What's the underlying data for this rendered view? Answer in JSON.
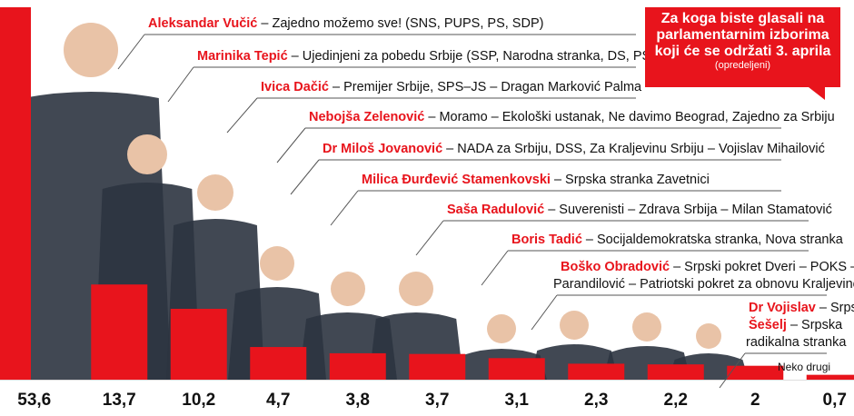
{
  "question": {
    "text": "Za koga biste glasali na parlamentarnim izborima koji će se održati 3. aprila",
    "note": "(opredeljeni)"
  },
  "colors": {
    "bar": "#e8141c",
    "name": "#e8141c",
    "text": "#111111",
    "leader": "#555555",
    "photo_skin": "#e9c3a7",
    "photo_suit": "#2c3440"
  },
  "chart_data": {
    "type": "bar",
    "ylim": [
      0,
      53.6
    ],
    "categories": [
      "Aleksandar Vučić",
      "Marinika Tepić",
      "Ivica Dačić",
      "Nebojša Zelenović",
      "Dr Miloš Jovanović",
      "Milica Đurđević Stamenkovski",
      "Saša Radulović",
      "Boris Tadić",
      "Boško Obradović",
      "Dr Vojislav Šešelj",
      "Neko drugi"
    ],
    "values": [
      53.6,
      13.7,
      10.2,
      4.7,
      3.8,
      3.7,
      3.1,
      2.3,
      2.2,
      2,
      0.7
    ],
    "value_labels": [
      "53,6",
      "13,7",
      "10,2",
      "4,7",
      "3,8",
      "3,7",
      "3,1",
      "2,3",
      "2,2",
      "2",
      "0,7"
    ],
    "bars": [
      {
        "name": "Aleksandar Vučić",
        "desc": " – Zajedno možemo sve! (SNS, PUPS, PS, SDP)"
      },
      {
        "name": "Marinika Tepić",
        "desc": " – Ujedinjeni za pobedu Srbije (SSP, Narodna stranka, DS, PSG)"
      },
      {
        "name": "Ivica Dačić",
        "desc": " – Premijer Srbije, SPS–JS – Dragan Marković Palma"
      },
      {
        "name": "Nebojša Zelenović",
        "desc": " – Moramo – Ekološki ustanak, Ne davimo Beograd, Zajedno za Srbiju"
      },
      {
        "name": "Dr Miloš Jovanović",
        "desc": " – NADA za Srbiju, DSS, Za Kraljevinu Srbiju – Vojislav Mihailović"
      },
      {
        "name": "Milica Đurđević Stamenkovski",
        "desc": " – Srpska stranka Zavetnici"
      },
      {
        "name": "Saša Radulović",
        "desc": " – Suverenisti – Zdrava Srbija – Milan Stamatović"
      },
      {
        "name": "Boris Tadić",
        "desc": " – Socijaldemokratska stranka, Nova stranka"
      },
      {
        "name": "Boško Obradović",
        "desc": " – Srpski pokret Dveri – POKS – Miloš",
        "desc2": "Parandilović – Patriotski pokret za obnovu Kraljevine"
      },
      {
        "name": "Dr Vojislav",
        "name2": "Šešelj",
        "desc": " – Srpska",
        "desc2": "radikalna stranka"
      },
      {
        "name": "",
        "desc": "Neko drugi"
      }
    ]
  }
}
